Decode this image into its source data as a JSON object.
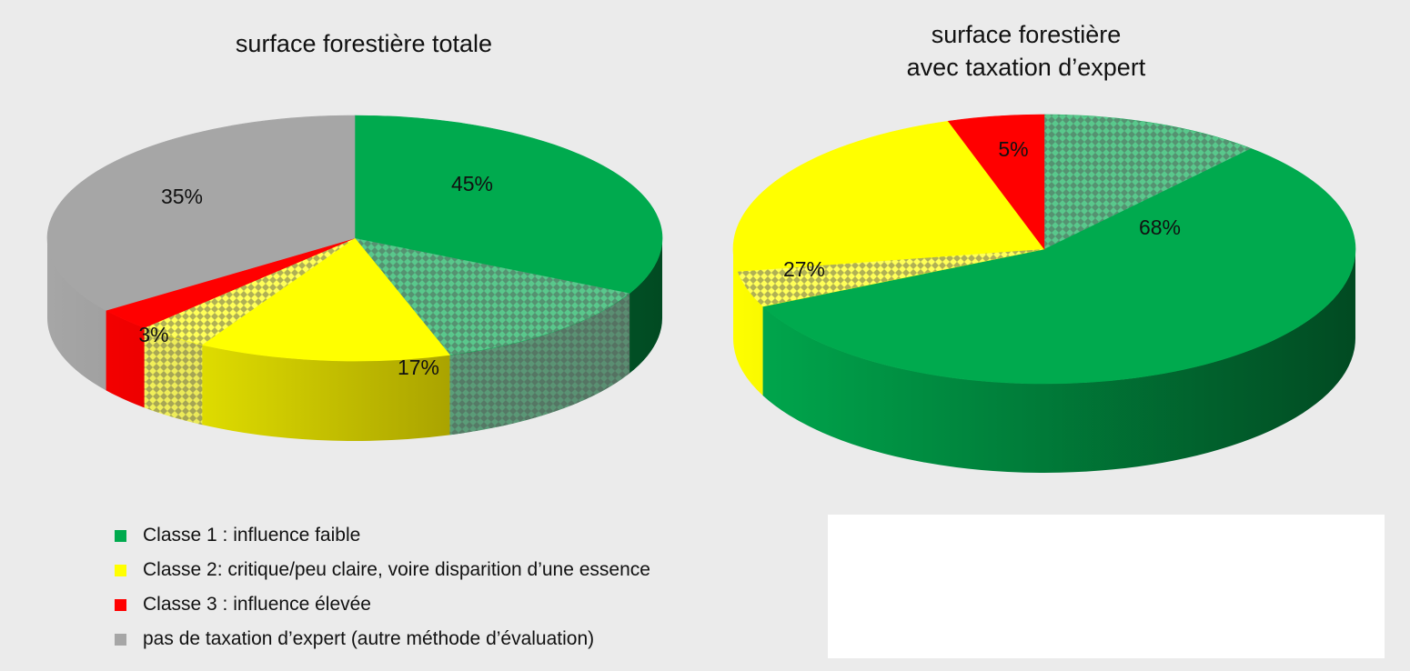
{
  "colors": {
    "class1": "#00aa4e",
    "class1_dark": "#014a22",
    "class2": "#ffff00",
    "class2_dark": "#7d7300",
    "class3": "#ff0000",
    "class3_dark": "#8a0000",
    "none": "#a6a6a6",
    "none_dark": "#6e6e6e"
  },
  "legend": [
    {
      "key": "class1",
      "label": "Classe 1 : influence faible",
      "icon": "square-swatch"
    },
    {
      "key": "class2",
      "label": "Classe 2: critique/peu claire, voire disparition d’une essence",
      "icon": "square-swatch"
    },
    {
      "key": "class3",
      "label": "Classe 3 : influence élevée",
      "icon": "square-swatch"
    },
    {
      "key": "none",
      "label": "pas de taxation d’expert  (autre méthode d’évaluation)",
      "icon": "square-swatch"
    }
  ],
  "chart_data": [
    {
      "type": "pie",
      "style": "3d",
      "title": "surface forestière totale",
      "slices": [
        {
          "key": "class1",
          "label": "Classe 1 : influence faible",
          "value": 45,
          "data_label": "45%"
        },
        {
          "key": "class2",
          "label": "Classe 2: critique/peu claire, voire disparition d’une essence",
          "value": 17,
          "data_label": "17%"
        },
        {
          "key": "class3",
          "label": "Classe 3 : influence élevée",
          "value": 3,
          "data_label": "3%"
        },
        {
          "key": "none",
          "label": "pas de taxation d’expert  (autre méthode d’évaluation)",
          "value": 35,
          "data_label": "35%"
        }
      ]
    },
    {
      "type": "pie",
      "style": "3d",
      "title": "surface forestière\navec taxation d’expert",
      "slices": [
        {
          "key": "class1",
          "label": "Classe 1 : influence faible",
          "value": 68,
          "data_label": "68%"
        },
        {
          "key": "class2",
          "label": "Classe 2: critique/peu claire, voire disparition d’une essence",
          "value": 27,
          "data_label": "27%"
        },
        {
          "key": "class3",
          "label": "Classe 3 : influence élevée",
          "value": 5,
          "data_label": "5%"
        }
      ]
    }
  ]
}
